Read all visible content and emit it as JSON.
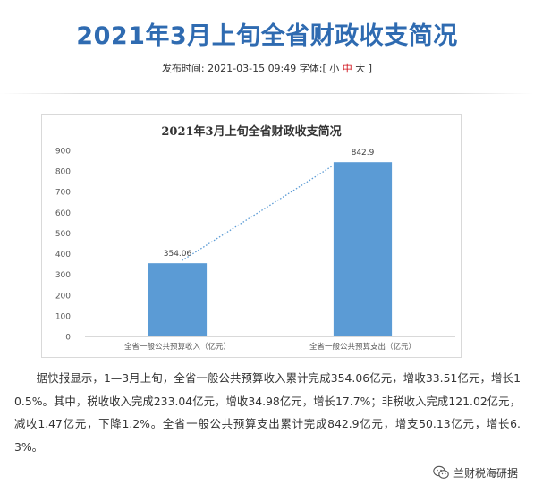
{
  "article": {
    "title": "2021年3月上旬全省财政收支简况",
    "meta_prefix": "发布时间: 2021-03-15 09:49 字体:[",
    "font_small": "小",
    "font_medium": "中",
    "font_large": "大",
    "meta_suffix": "]",
    "body": "据快报显示，1—3月上旬，全省一般公共预算收入累计完成354.06亿元，增收33.51亿元，增长10.5%。其中，税收收入完成233.04亿元，增收34.98亿元，增长17.7%；非税收入完成121.02亿元，减收1.47亿元，下降1.2%。全省一般公共预算支出累计完成842.9亿元，增支50.13亿元，增长6.3%。"
  },
  "watermark": {
    "text": "兰财税海研据",
    "icon": "wechat-icon"
  },
  "colors": {
    "title": "#2f6bb1",
    "bar": "#5b9bd5",
    "trendline": "#5b9bd5",
    "font_active": "#d0121b"
  },
  "chart_data": {
    "type": "bar",
    "title": "2021年3月上旬全省财政收支简况",
    "categories": [
      "全省一般公共预算收入（亿元）",
      "全省一般公共预算支出（亿元）"
    ],
    "values": [
      354.06,
      842.9
    ],
    "data_labels": [
      "354.06",
      "842.9"
    ],
    "ylim": [
      0,
      900
    ],
    "yticks": [
      0,
      100,
      200,
      300,
      400,
      500,
      600,
      700,
      800,
      900
    ],
    "trendline": "linear, dotted",
    "grid": false,
    "legend": "none"
  }
}
